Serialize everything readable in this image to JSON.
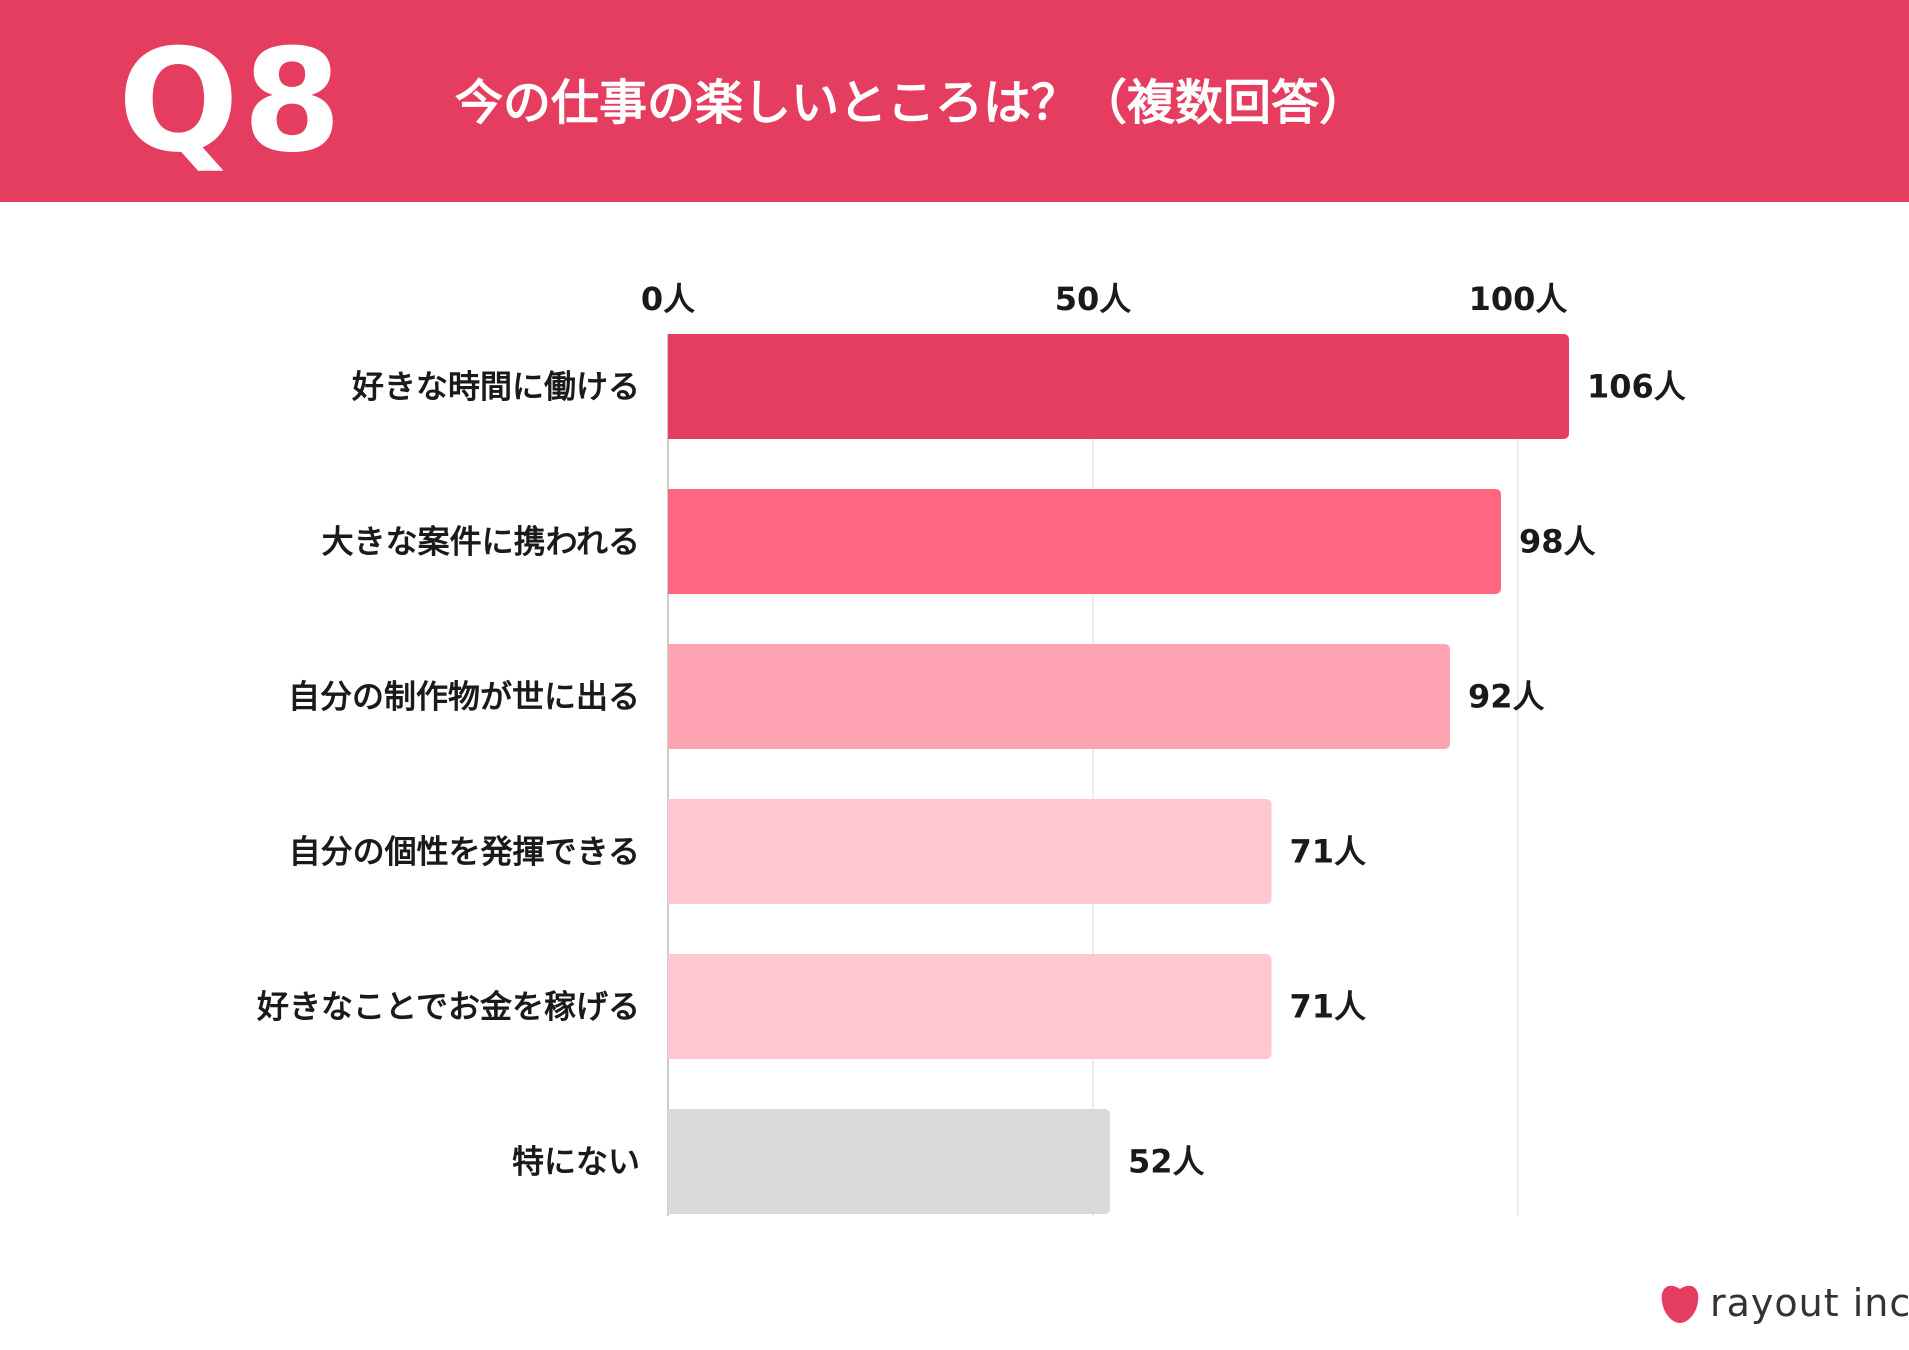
{
  "header": {
    "question": "Q8",
    "title": "今の仕事の楽しいところは？（複数回答）"
  },
  "brand": {
    "name": "rayout inc.",
    "accent_color": "#e53d5f"
  },
  "chart_data": {
    "type": "bar",
    "orientation": "horizontal",
    "title": "今の仕事の楽しいところは？（複数回答）",
    "categories": [
      "好きな時間に働ける",
      "大きな案件に携われる",
      "自分の制作物が世に出る",
      "自分の個性を発揮できる",
      "好きなことでお金を稼げる",
      "特にない"
    ],
    "values": [
      106,
      98,
      92,
      71,
      71,
      52
    ],
    "value_labels": [
      "106人",
      "98人",
      "92人",
      "71人",
      "71人",
      "52人"
    ],
    "bar_colors": [
      "#e53d5f",
      "#ff6682",
      "#fda3b1",
      "#fec7d1",
      "#fec7d1",
      "#d9d9d9"
    ],
    "x_ticks": [
      0,
      50,
      100
    ],
    "x_tick_labels": [
      "0人",
      "50人",
      "100人"
    ],
    "xlim": [
      0,
      106
    ],
    "axis_position": "top",
    "grid": true
  }
}
